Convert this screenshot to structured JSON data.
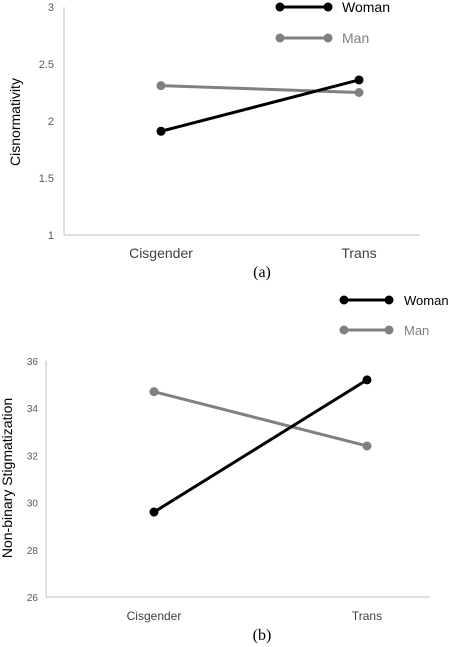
{
  "chart_data": [
    {
      "type": "line",
      "panel_label": "(a)",
      "ylabel": "Cisnormativity",
      "xlabel": "",
      "categories": [
        "Cisgender",
        "Trans"
      ],
      "yticks": [
        "1",
        "1.5",
        "2",
        "2.5",
        "3"
      ],
      "ylim": [
        1,
        3
      ],
      "grid": false,
      "legend": "top-right",
      "series": [
        {
          "name": "Woman",
          "color": "#000000",
          "values": [
            1.91,
            2.36
          ]
        },
        {
          "name": "Man",
          "color": "#808080",
          "values": [
            2.31,
            2.25
          ]
        }
      ]
    },
    {
      "type": "line",
      "panel_label": "(b)",
      "ylabel": "Non-binary Stigmatization",
      "xlabel": "",
      "categories": [
        "Cisgender",
        "Trans"
      ],
      "yticks": [
        "26",
        "28",
        "30",
        "32",
        "34",
        "36"
      ],
      "ylim": [
        26,
        36
      ],
      "grid": false,
      "legend": "top-right",
      "series": [
        {
          "name": "Woman",
          "color": "#000000",
          "values": [
            29.6,
            35.2
          ]
        },
        {
          "name": "Man",
          "color": "#808080",
          "values": [
            34.7,
            32.4
          ]
        }
      ]
    }
  ]
}
